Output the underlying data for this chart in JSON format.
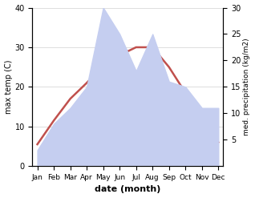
{
  "months": [
    "Jan",
    "Feb",
    "Mar",
    "Apr",
    "May",
    "Jun",
    "Jul",
    "Aug",
    "Sep",
    "Oct",
    "Nov",
    "Dec"
  ],
  "temperature": [
    5.5,
    11.5,
    17.0,
    21.0,
    25.5,
    28.0,
    30.0,
    30.0,
    25.0,
    18.5,
    11.0,
    6.0
  ],
  "precipitation": [
    3.0,
    8.0,
    11.0,
    15.0,
    30.0,
    25.0,
    18.0,
    25.0,
    16.0,
    15.0,
    11.0,
    11.0
  ],
  "temp_color": "#c0504d",
  "precip_fill_color": "#c5cef0",
  "precip_edge_color": "#aab4e8",
  "temp_ylim": [
    0,
    40
  ],
  "precip_ylim": [
    0,
    30
  ],
  "precip_yticks": [
    5,
    10,
    15,
    20,
    25,
    30
  ],
  "temp_yticks": [
    0,
    10,
    20,
    30,
    40
  ],
  "xlabel": "date (month)",
  "ylabel_left": "max temp (C)",
  "ylabel_right": "med. precipitation (kg/m2)",
  "background_color": "#ffffff",
  "grid_color": "#d0d0d0"
}
